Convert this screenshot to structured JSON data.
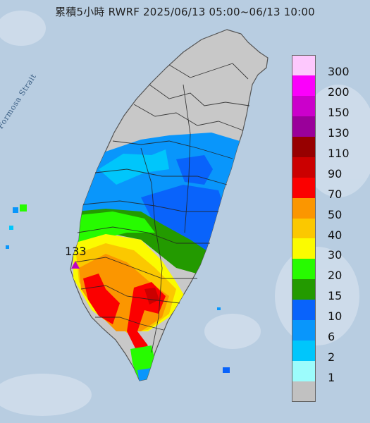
{
  "title": "累積5小時 RWRF 2025/06/13 05:00~06/13 10:00",
  "strait_label": "Formosa Strait",
  "max_value_label": "133",
  "legend": [
    {
      "label": "300",
      "color": "#fdc8fd"
    },
    {
      "label": "200",
      "color": "#fb00fb"
    },
    {
      "label": "150",
      "color": "#cb00cb"
    },
    {
      "label": "130",
      "color": "#9a009a"
    },
    {
      "label": "110",
      "color": "#970000"
    },
    {
      "label": "90",
      "color": "#cb0000"
    },
    {
      "label": "70",
      "color": "#fb0000"
    },
    {
      "label": "50",
      "color": "#fb9600"
    },
    {
      "label": "40",
      "color": "#fbc800"
    },
    {
      "label": "30",
      "color": "#fbfb00"
    },
    {
      "label": "20",
      "color": "#27fb00"
    },
    {
      "label": "15",
      "color": "#239a00"
    },
    {
      "label": "10",
      "color": "#0963fb"
    },
    {
      "label": "6",
      "color": "#0996fb"
    },
    {
      "label": "2",
      "color": "#00c6fb"
    },
    {
      "label": "1",
      "color": "#9cfcfc"
    },
    {
      "label": "",
      "color": "#c1c1c1"
    }
  ]
}
